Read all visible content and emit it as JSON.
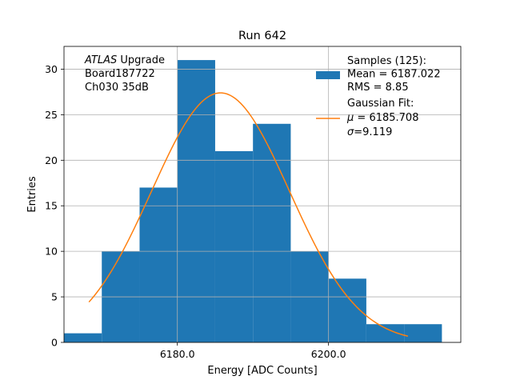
{
  "chart_data": {
    "type": "bar",
    "title": "Run 642",
    "xlabel": "Energy [ADC Counts]",
    "ylabel": "Entries",
    "xlim": [
      6165.0,
      6217.5
    ],
    "ylim": [
      0,
      32.5
    ],
    "grid": true,
    "xticks": [
      6180.0,
      6200.0
    ],
    "xtick_labels": [
      "6180.0",
      "6200.0"
    ],
    "yticks": [
      0,
      5,
      10,
      15,
      20,
      25,
      30
    ],
    "ytick_labels": [
      "0",
      "5",
      "10",
      "15",
      "20",
      "25",
      "30"
    ],
    "bins": [
      {
        "x0": 6165,
        "x1": 6170,
        "count": 1
      },
      {
        "x0": 6170,
        "x1": 6175,
        "count": 10
      },
      {
        "x0": 6175,
        "x1": 6180,
        "count": 17
      },
      {
        "x0": 6180,
        "x1": 6185,
        "count": 31
      },
      {
        "x0": 6185,
        "x1": 6190,
        "count": 21
      },
      {
        "x0": 6190,
        "x1": 6195,
        "count": 24
      },
      {
        "x0": 6195,
        "x1": 6200,
        "count": 10
      },
      {
        "x0": 6200,
        "x1": 6205,
        "count": 7
      },
      {
        "x0": 6205,
        "x1": 6210,
        "count": 2
      },
      {
        "x0": 6210,
        "x1": 6215,
        "count": 2
      }
    ],
    "fit": {
      "mu": 6185.708,
      "sigma": 9.119,
      "amplitude": 27.4,
      "x_range": [
        6168.3,
        6210.5
      ]
    },
    "annotation_lines": [
      "ATLAS Upgrade",
      " Board187722",
      " Ch030 35dB"
    ],
    "annotation_italic": "ATLAS",
    "legend": {
      "position": "upper right",
      "hist_lines": [
        "Samples (125):",
        " Mean = 6187.022",
        " RMS = 8.85"
      ],
      "fit_lines": [
        "Gaussian Fit:",
        " μ = 6185.708",
        " σ=9.119"
      ]
    },
    "colors": {
      "hist": "#1f77b4",
      "fit": "#ff7f0e",
      "grid": "#b0b0b0"
    }
  }
}
